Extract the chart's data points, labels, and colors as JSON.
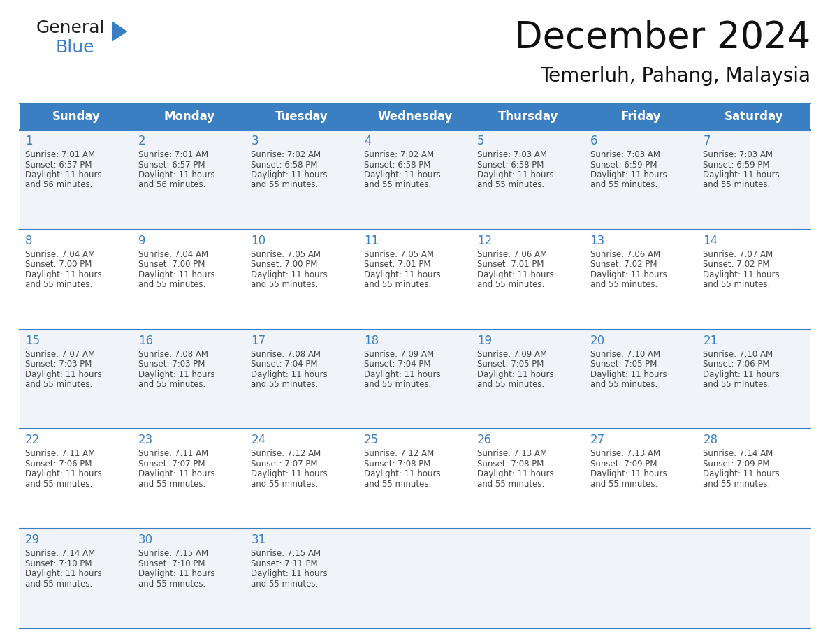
{
  "title": "December 2024",
  "subtitle": "Temerluh, Pahang, Malaysia",
  "days_of_week": [
    "Sunday",
    "Monday",
    "Tuesday",
    "Wednesday",
    "Thursday",
    "Friday",
    "Saturday"
  ],
  "header_bg": "#3a7fc1",
  "header_text_color": "#FFFFFF",
  "row_bg_odd": "#f0f4f8",
  "row_bg_even": "#FFFFFF",
  "day_num_color": "#3a7fc1",
  "cell_text_color": "#444444",
  "divider_color": "#3a7fc1",
  "calendar_data": [
    [
      {
        "day": 1,
        "sunrise": "7:01 AM",
        "sunset": "6:57 PM",
        "daylight_line1": "Daylight: 11 hours",
        "daylight_line2": "and 56 minutes."
      },
      {
        "day": 2,
        "sunrise": "7:01 AM",
        "sunset": "6:57 PM",
        "daylight_line1": "Daylight: 11 hours",
        "daylight_line2": "and 56 minutes."
      },
      {
        "day": 3,
        "sunrise": "7:02 AM",
        "sunset": "6:58 PM",
        "daylight_line1": "Daylight: 11 hours",
        "daylight_line2": "and 55 minutes."
      },
      {
        "day": 4,
        "sunrise": "7:02 AM",
        "sunset": "6:58 PM",
        "daylight_line1": "Daylight: 11 hours",
        "daylight_line2": "and 55 minutes."
      },
      {
        "day": 5,
        "sunrise": "7:03 AM",
        "sunset": "6:58 PM",
        "daylight_line1": "Daylight: 11 hours",
        "daylight_line2": "and 55 minutes."
      },
      {
        "day": 6,
        "sunrise": "7:03 AM",
        "sunset": "6:59 PM",
        "daylight_line1": "Daylight: 11 hours",
        "daylight_line2": "and 55 minutes."
      },
      {
        "day": 7,
        "sunrise": "7:03 AM",
        "sunset": "6:59 PM",
        "daylight_line1": "Daylight: 11 hours",
        "daylight_line2": "and 55 minutes."
      }
    ],
    [
      {
        "day": 8,
        "sunrise": "7:04 AM",
        "sunset": "7:00 PM",
        "daylight_line1": "Daylight: 11 hours",
        "daylight_line2": "and 55 minutes."
      },
      {
        "day": 9,
        "sunrise": "7:04 AM",
        "sunset": "7:00 PM",
        "daylight_line1": "Daylight: 11 hours",
        "daylight_line2": "and 55 minutes."
      },
      {
        "day": 10,
        "sunrise": "7:05 AM",
        "sunset": "7:00 PM",
        "daylight_line1": "Daylight: 11 hours",
        "daylight_line2": "and 55 minutes."
      },
      {
        "day": 11,
        "sunrise": "7:05 AM",
        "sunset": "7:01 PM",
        "daylight_line1": "Daylight: 11 hours",
        "daylight_line2": "and 55 minutes."
      },
      {
        "day": 12,
        "sunrise": "7:06 AM",
        "sunset": "7:01 PM",
        "daylight_line1": "Daylight: 11 hours",
        "daylight_line2": "and 55 minutes."
      },
      {
        "day": 13,
        "sunrise": "7:06 AM",
        "sunset": "7:02 PM",
        "daylight_line1": "Daylight: 11 hours",
        "daylight_line2": "and 55 minutes."
      },
      {
        "day": 14,
        "sunrise": "7:07 AM",
        "sunset": "7:02 PM",
        "daylight_line1": "Daylight: 11 hours",
        "daylight_line2": "and 55 minutes."
      }
    ],
    [
      {
        "day": 15,
        "sunrise": "7:07 AM",
        "sunset": "7:03 PM",
        "daylight_line1": "Daylight: 11 hours",
        "daylight_line2": "and 55 minutes."
      },
      {
        "day": 16,
        "sunrise": "7:08 AM",
        "sunset": "7:03 PM",
        "daylight_line1": "Daylight: 11 hours",
        "daylight_line2": "and 55 minutes."
      },
      {
        "day": 17,
        "sunrise": "7:08 AM",
        "sunset": "7:04 PM",
        "daylight_line1": "Daylight: 11 hours",
        "daylight_line2": "and 55 minutes."
      },
      {
        "day": 18,
        "sunrise": "7:09 AM",
        "sunset": "7:04 PM",
        "daylight_line1": "Daylight: 11 hours",
        "daylight_line2": "and 55 minutes."
      },
      {
        "day": 19,
        "sunrise": "7:09 AM",
        "sunset": "7:05 PM",
        "daylight_line1": "Daylight: 11 hours",
        "daylight_line2": "and 55 minutes."
      },
      {
        "day": 20,
        "sunrise": "7:10 AM",
        "sunset": "7:05 PM",
        "daylight_line1": "Daylight: 11 hours",
        "daylight_line2": "and 55 minutes."
      },
      {
        "day": 21,
        "sunrise": "7:10 AM",
        "sunset": "7:06 PM",
        "daylight_line1": "Daylight: 11 hours",
        "daylight_line2": "and 55 minutes."
      }
    ],
    [
      {
        "day": 22,
        "sunrise": "7:11 AM",
        "sunset": "7:06 PM",
        "daylight_line1": "Daylight: 11 hours",
        "daylight_line2": "and 55 minutes."
      },
      {
        "day": 23,
        "sunrise": "7:11 AM",
        "sunset": "7:07 PM",
        "daylight_line1": "Daylight: 11 hours",
        "daylight_line2": "and 55 minutes."
      },
      {
        "day": 24,
        "sunrise": "7:12 AM",
        "sunset": "7:07 PM",
        "daylight_line1": "Daylight: 11 hours",
        "daylight_line2": "and 55 minutes."
      },
      {
        "day": 25,
        "sunrise": "7:12 AM",
        "sunset": "7:08 PM",
        "daylight_line1": "Daylight: 11 hours",
        "daylight_line2": "and 55 minutes."
      },
      {
        "day": 26,
        "sunrise": "7:13 AM",
        "sunset": "7:08 PM",
        "daylight_line1": "Daylight: 11 hours",
        "daylight_line2": "and 55 minutes."
      },
      {
        "day": 27,
        "sunrise": "7:13 AM",
        "sunset": "7:09 PM",
        "daylight_line1": "Daylight: 11 hours",
        "daylight_line2": "and 55 minutes."
      },
      {
        "day": 28,
        "sunrise": "7:14 AM",
        "sunset": "7:09 PM",
        "daylight_line1": "Daylight: 11 hours",
        "daylight_line2": "and 55 minutes."
      }
    ],
    [
      {
        "day": 29,
        "sunrise": "7:14 AM",
        "sunset": "7:10 PM",
        "daylight_line1": "Daylight: 11 hours",
        "daylight_line2": "and 55 minutes."
      },
      {
        "day": 30,
        "sunrise": "7:15 AM",
        "sunset": "7:10 PM",
        "daylight_line1": "Daylight: 11 hours",
        "daylight_line2": "and 55 minutes."
      },
      {
        "day": 31,
        "sunrise": "7:15 AM",
        "sunset": "7:11 PM",
        "daylight_line1": "Daylight: 11 hours",
        "daylight_line2": "and 55 minutes."
      },
      null,
      null,
      null,
      null
    ]
  ],
  "logo_general_color": "#222222",
  "logo_blue_color": "#3a7fc1",
  "logo_triangle_color": "#3a7fc1",
  "title_fontsize": 38,
  "subtitle_fontsize": 20,
  "header_fontsize": 12,
  "day_num_fontsize": 12,
  "cell_text_fontsize": 8.5
}
